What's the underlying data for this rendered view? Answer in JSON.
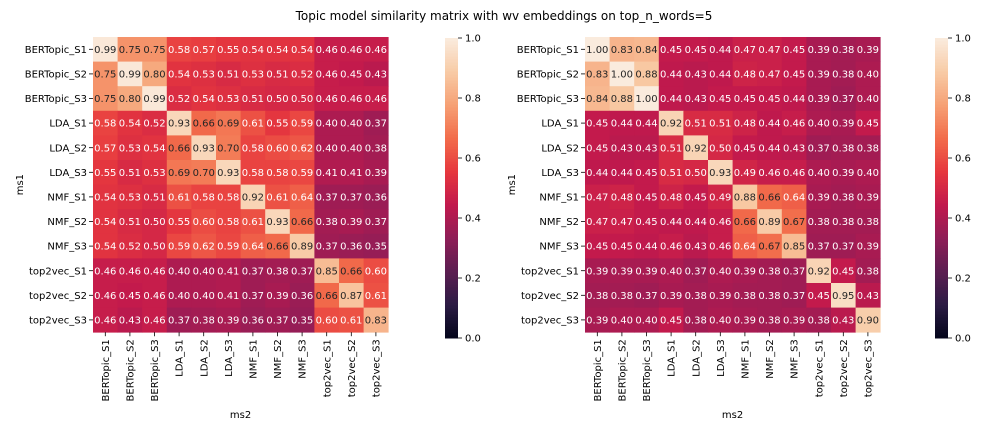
{
  "figure": {
    "suptitle": "Topic model similarity matrix with wv embeddings on  top_n_words=5"
  },
  "colormap": {
    "name": "rocket",
    "stops": [
      "#03051a",
      "#2b1b44",
      "#5b1e51",
      "#8e1e57",
      "#c1194d",
      "#e6373e",
      "#f26c4b",
      "#f6a074",
      "#f8cba6",
      "#faebdd"
    ]
  },
  "chart_data": [
    {
      "type": "heatmap",
      "xlabel": "ms2",
      "ylabel": "ms1",
      "row_labels": [
        "BERTopic_S1",
        "BERTopic_S2",
        "BERTopic_S3",
        "LDA_S1",
        "LDA_S2",
        "LDA_S3",
        "NMF_S1",
        "NMF_S2",
        "NMF_S3",
        "top2vec_S1",
        "top2vec_S2",
        "top2vec_S3"
      ],
      "col_labels": [
        "BERTopic_S1",
        "BERTopic_S2",
        "BERTopic_S3",
        "LDA_S1",
        "LDA_S2",
        "LDA_S3",
        "NMF_S1",
        "NMF_S2",
        "NMF_S3",
        "top2vec_S1",
        "top2vec_S2",
        "top2vec_S3"
      ],
      "vmin": 0.0,
      "vmax": 1.0,
      "colorbar_ticks": [
        "0.0",
        "0.2",
        "0.4",
        "0.6",
        "0.8",
        "1.0"
      ],
      "values": [
        [
          0.99,
          0.75,
          0.75,
          0.58,
          0.57,
          0.55,
          0.54,
          0.54,
          0.54,
          0.46,
          0.46,
          0.46
        ],
        [
          0.75,
          0.99,
          0.8,
          0.54,
          0.53,
          0.51,
          0.53,
          0.51,
          0.52,
          0.46,
          0.45,
          0.43
        ],
        [
          0.75,
          0.8,
          0.99,
          0.52,
          0.54,
          0.53,
          0.51,
          0.5,
          0.5,
          0.46,
          0.46,
          0.46
        ],
        [
          0.58,
          0.54,
          0.52,
          0.93,
          0.66,
          0.69,
          0.61,
          0.55,
          0.59,
          0.4,
          0.4,
          0.37
        ],
        [
          0.57,
          0.53,
          0.54,
          0.66,
          0.93,
          0.7,
          0.58,
          0.6,
          0.62,
          0.4,
          0.4,
          0.38
        ],
        [
          0.55,
          0.51,
          0.53,
          0.69,
          0.7,
          0.93,
          0.58,
          0.58,
          0.59,
          0.41,
          0.41,
          0.39
        ],
        [
          0.54,
          0.53,
          0.51,
          0.61,
          0.58,
          0.58,
          0.92,
          0.61,
          0.64,
          0.37,
          0.37,
          0.36
        ],
        [
          0.54,
          0.51,
          0.5,
          0.55,
          0.6,
          0.58,
          0.61,
          0.93,
          0.66,
          0.38,
          0.39,
          0.37
        ],
        [
          0.54,
          0.52,
          0.5,
          0.59,
          0.62,
          0.59,
          0.64,
          0.66,
          0.89,
          0.37,
          0.36,
          0.35
        ],
        [
          0.46,
          0.46,
          0.46,
          0.4,
          0.4,
          0.41,
          0.37,
          0.38,
          0.37,
          0.85,
          0.66,
          0.6
        ],
        [
          0.46,
          0.45,
          0.46,
          0.4,
          0.4,
          0.41,
          0.37,
          0.39,
          0.36,
          0.66,
          0.87,
          0.61
        ],
        [
          0.46,
          0.43,
          0.46,
          0.37,
          0.38,
          0.39,
          0.36,
          0.37,
          0.35,
          0.6,
          0.61,
          0.83
        ]
      ]
    },
    {
      "type": "heatmap",
      "xlabel": "ms2",
      "ylabel": "ms1",
      "row_labels": [
        "BERTopic_S1",
        "BERTopic_S2",
        "BERTopic_S3",
        "LDA_S1",
        "LDA_S2",
        "LDA_S3",
        "NMF_S1",
        "NMF_S2",
        "NMF_S3",
        "top2vec_S1",
        "top2vec_S2",
        "top2vec_S3"
      ],
      "col_labels": [
        "BERTopic_S1",
        "BERTopic_S2",
        "BERTopic_S3",
        "LDA_S1",
        "LDA_S2",
        "LDA_S3",
        "NMF_S1",
        "NMF_S2",
        "NMF_S3",
        "top2vec_S1",
        "top2vec_S2",
        "top2vec_S3"
      ],
      "vmin": 0.0,
      "vmax": 1.0,
      "colorbar_ticks": [
        "0.0",
        "0.2",
        "0.4",
        "0.6",
        "0.8",
        "1.0"
      ],
      "values": [
        [
          1.0,
          0.83,
          0.84,
          0.45,
          0.45,
          0.44,
          0.47,
          0.47,
          0.45,
          0.39,
          0.38,
          0.39
        ],
        [
          0.83,
          1.0,
          0.88,
          0.44,
          0.43,
          0.44,
          0.48,
          0.47,
          0.45,
          0.39,
          0.38,
          0.4
        ],
        [
          0.84,
          0.88,
          1.0,
          0.44,
          0.43,
          0.45,
          0.45,
          0.45,
          0.44,
          0.39,
          0.37,
          0.4
        ],
        [
          0.45,
          0.44,
          0.44,
          0.92,
          0.51,
          0.51,
          0.48,
          0.44,
          0.46,
          0.4,
          0.39,
          0.45
        ],
        [
          0.45,
          0.43,
          0.43,
          0.51,
          0.92,
          0.5,
          0.45,
          0.44,
          0.43,
          0.37,
          0.38,
          0.38
        ],
        [
          0.44,
          0.44,
          0.45,
          0.51,
          0.5,
          0.93,
          0.49,
          0.46,
          0.46,
          0.4,
          0.39,
          0.4
        ],
        [
          0.47,
          0.48,
          0.45,
          0.48,
          0.45,
          0.49,
          0.88,
          0.66,
          0.64,
          0.39,
          0.38,
          0.39
        ],
        [
          0.47,
          0.47,
          0.45,
          0.44,
          0.44,
          0.46,
          0.66,
          0.89,
          0.67,
          0.38,
          0.38,
          0.38
        ],
        [
          0.45,
          0.45,
          0.44,
          0.46,
          0.43,
          0.46,
          0.64,
          0.67,
          0.85,
          0.37,
          0.37,
          0.39
        ],
        [
          0.39,
          0.39,
          0.39,
          0.4,
          0.37,
          0.4,
          0.39,
          0.38,
          0.37,
          0.92,
          0.45,
          0.38
        ],
        [
          0.38,
          0.38,
          0.37,
          0.39,
          0.38,
          0.39,
          0.38,
          0.38,
          0.37,
          0.45,
          0.95,
          0.43
        ],
        [
          0.39,
          0.4,
          0.4,
          0.45,
          0.38,
          0.4,
          0.39,
          0.38,
          0.39,
          0.38,
          0.43,
          0.9
        ]
      ]
    }
  ]
}
